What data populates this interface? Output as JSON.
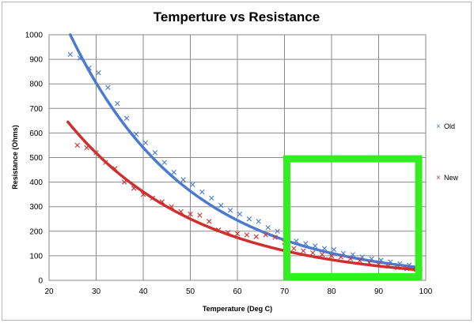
{
  "chart_data": {
    "type": "scatter",
    "title": "Temperture vs Resistance",
    "xlabel": "Temperature (Deg C)",
    "ylabel": "Resistance (Ohms)",
    "xlim": [
      20,
      100
    ],
    "ylim": [
      0,
      1000
    ],
    "xticks": [
      20,
      30,
      40,
      50,
      60,
      70,
      80,
      90,
      100
    ],
    "yticks": [
      0,
      100,
      200,
      300,
      400,
      500,
      600,
      700,
      800,
      900,
      1000
    ],
    "grid": true,
    "legend_position": "right",
    "series": [
      {
        "name": "Old",
        "color": "#4a7bd0",
        "marker": "x",
        "points": [
          [
            24.5,
            920
          ],
          [
            26.5,
            905
          ],
          [
            28.5,
            865
          ],
          [
            30.5,
            845
          ],
          [
            32.5,
            785
          ],
          [
            34.5,
            720
          ],
          [
            36.5,
            660
          ],
          [
            38.5,
            595
          ],
          [
            40.5,
            560
          ],
          [
            42.5,
            520
          ],
          [
            44.5,
            480
          ],
          [
            46.5,
            440
          ],
          [
            48.5,
            410
          ],
          [
            50.5,
            390
          ],
          [
            52.5,
            360
          ],
          [
            54.5,
            335
          ],
          [
            56.5,
            305
          ],
          [
            58.5,
            285
          ],
          [
            60.5,
            270
          ],
          [
            62.5,
            250
          ],
          [
            64.5,
            240
          ],
          [
            66.5,
            215
          ],
          [
            68.5,
            200
          ],
          [
            70.5,
            175
          ],
          [
            72.5,
            160
          ],
          [
            74.5,
            150
          ],
          [
            76.5,
            140
          ],
          [
            78.5,
            130
          ],
          [
            80.5,
            125
          ],
          [
            82.5,
            110
          ],
          [
            84.5,
            105
          ],
          [
            86.5,
            95
          ],
          [
            88.5,
            88
          ],
          [
            90.5,
            82
          ],
          [
            92.5,
            75
          ],
          [
            94.5,
            68
          ],
          [
            96.5,
            62
          ],
          [
            98.5,
            58
          ]
        ],
        "trendline": [
          [
            24.5,
            1000
          ],
          [
            99,
            52
          ]
        ]
      },
      {
        "name": "New",
        "color": "#d02f2f",
        "marker": "x",
        "points": [
          [
            26,
            550
          ],
          [
            28,
            540
          ],
          [
            30,
            520
          ],
          [
            32,
            480
          ],
          [
            34,
            455
          ],
          [
            36,
            400
          ],
          [
            38,
            375
          ],
          [
            40,
            350
          ],
          [
            42,
            335
          ],
          [
            44,
            320
          ],
          [
            46,
            300
          ],
          [
            48,
            280
          ],
          [
            50,
            270
          ],
          [
            52,
            265
          ],
          [
            54,
            240
          ],
          [
            56,
            205
          ],
          [
            58,
            195
          ],
          [
            60,
            190
          ],
          [
            62,
            185
          ],
          [
            64,
            178
          ],
          [
            66,
            185
          ],
          [
            68,
            175
          ],
          [
            70,
            155
          ],
          [
            72,
            130
          ],
          [
            74,
            120
          ],
          [
            76,
            112
          ],
          [
            78,
            105
          ],
          [
            80,
            100
          ],
          [
            82,
            95
          ],
          [
            84,
            88
          ],
          [
            86,
            80
          ],
          [
            88,
            72
          ],
          [
            90,
            65
          ],
          [
            92,
            58
          ],
          [
            94,
            52
          ],
          [
            96,
            48
          ],
          [
            98,
            45
          ]
        ],
        "trendline": [
          [
            24,
            645
          ],
          [
            99,
            42
          ]
        ]
      }
    ],
    "annotations": [
      {
        "type": "rectangle",
        "color": "#33ee22",
        "x_range": [
          70.5,
          98.5
        ],
        "y_range": [
          15,
          495
        ]
      }
    ]
  }
}
